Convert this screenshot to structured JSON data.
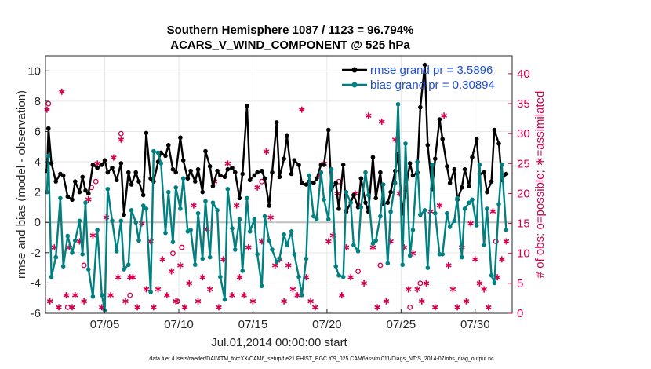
{
  "chart_data": {
    "type": "line",
    "title_line1": "Southern Hemisphere 1087 / 1123 = 96.794%",
    "title_line2": "ACARS_V_WIND_COMPONENT @ 525 hPa",
    "ylabel": "rmse and bias (model - observation)",
    "y2label": "# of obs: o=possible; ∗=assimilated",
    "xlabel": "Jul.01,2014 00:00:00 start",
    "footer": "data file: /Users/raeder/DAI/ATM_forcXX/CAM6_setup/f.e21.FHIST_BGC.f09_025.CAM6assim.011/Diags_NTrS_2014-07/obs_diag_output.nc",
    "xlim": [
      1.0,
      32.5
    ],
    "ylim": [
      -6,
      11
    ],
    "y2lim": [
      0,
      43
    ],
    "x_ticks": [
      5,
      10,
      15,
      20,
      25,
      30
    ],
    "x_tick_labels": [
      "07/05",
      "07/10",
      "07/15",
      "07/20",
      "07/25",
      "07/30"
    ],
    "y_ticks": [
      -6,
      -4,
      -2,
      0,
      2,
      4,
      6,
      8,
      10
    ],
    "y2_ticks": [
      0,
      5,
      10,
      15,
      20,
      25,
      30,
      35,
      40
    ],
    "grid": true,
    "legend_position": "top-right",
    "colors": {
      "rmse": "#000000",
      "bias": "#008080",
      "obs": "#d6004f",
      "zero_line": "#bfbfbf"
    },
    "series": [
      {
        "name": "rmse grand pr = 3.5896",
        "x": [
          1.1,
          1.2,
          1.4,
          1.7,
          2.0,
          2.2,
          2.5,
          2.8,
          3.0,
          3.3,
          3.5,
          3.7,
          3.9,
          4.2,
          4.5,
          4.8,
          5.0,
          5.2,
          5.5,
          5.8,
          6.1,
          6.3,
          6.6,
          6.8,
          7.1,
          7.3,
          7.6,
          7.8,
          8.1,
          8.3,
          8.6,
          8.8,
          9.1,
          9.3,
          9.6,
          9.8,
          10.1,
          10.3,
          10.6,
          10.8,
          11.1,
          11.3,
          11.6,
          11.8,
          12.1,
          12.3,
          12.6,
          12.8,
          13.1,
          13.3,
          13.6,
          13.8,
          14.1,
          14.3,
          14.6,
          14.8,
          15.1,
          15.3,
          15.6,
          15.8,
          16.1,
          16.3,
          16.6,
          16.8,
          17.1,
          17.3,
          17.6,
          17.8,
          18.1,
          18.3,
          18.6,
          18.8,
          19.1,
          19.3,
          19.6,
          19.8,
          20.1,
          20.3,
          20.6,
          20.8,
          21.1,
          21.3,
          21.6,
          21.8,
          22.1,
          22.3,
          22.6,
          22.8,
          23.1,
          23.3,
          23.6,
          23.8,
          24.1,
          24.3,
          24.6,
          24.8,
          25.1,
          25.3,
          25.6,
          25.8,
          26.1,
          26.3,
          26.6,
          26.8,
          27.1,
          27.3,
          27.6,
          27.8,
          28.1,
          28.3,
          28.6,
          28.8,
          29.1,
          29.3,
          29.6,
          29.8,
          30.1,
          30.3,
          30.6,
          30.8,
          31.1,
          31.3,
          31.6,
          31.8,
          32.1
        ],
        "values": [
          3.4,
          6.2,
          3.9,
          2.7,
          3.2,
          3.1,
          1.7,
          1.5,
          2.7,
          2.0,
          3.0,
          2.1,
          1.9,
          3.8,
          3.6,
          3.8,
          4.1,
          3.3,
          3.6,
          2.8,
          3.9,
          0.5,
          3.3,
          2.5,
          3.3,
          2.7,
          1.8,
          5.9,
          2.9,
          2.7,
          4.0,
          4.6,
          4.4,
          5.1,
          3.5,
          3.3,
          5.6,
          4.1,
          2.9,
          3.4,
          2.7,
          3.5,
          2.0,
          4.7,
          3.7,
          2.4,
          3.4,
          3.1,
          3.0,
          3.5,
          3.6,
          3.3,
          1.6,
          3.2,
          7.7,
          2.8,
          3.1,
          3.3,
          3.4,
          2.9,
          1.1,
          3.3,
          6.6,
          3.0,
          4.2,
          5.7,
          3.2,
          4.1,
          3.8,
          2.6,
          2.5,
          2.7,
          2.6,
          2.9,
          3.8,
          3.8,
          6.1,
          2.2,
          2.6,
          0.9,
          3.8,
          0.7,
          1.3,
          1.8,
          1.0,
          2.9,
          1.3,
          0.7,
          4.3,
          1.6,
          3.3,
          1.2,
          1.3,
          2.0,
          3.4,
          4.5,
          0.6,
          2.1,
          3.9,
          3.1,
          3.3,
          7.6,
          10.4,
          5.1,
          2.2,
          4.2,
          6.8,
          5.5,
          3.7,
          2.6,
          3.5,
          1.5,
          2.3,
          3.5,
          2.4,
          4.3,
          5.5,
          3.2,
          3.3,
          2.0,
          2.7,
          6.1,
          5.2,
          2.8,
          3.2
        ]
      },
      {
        "name": "bias grand pr = 0.30894",
        "x": [
          1.1,
          1.2,
          1.4,
          1.7,
          2.0,
          2.2,
          2.5,
          2.8,
          3.0,
          3.3,
          3.5,
          3.7,
          3.9,
          4.2,
          4.5,
          4.8,
          5.0,
          5.2,
          5.5,
          5.8,
          6.1,
          6.3,
          6.6,
          6.8,
          7.1,
          7.3,
          7.6,
          7.8,
          8.1,
          8.3,
          8.6,
          8.8,
          9.1,
          9.3,
          9.6,
          9.8,
          10.1,
          10.3,
          10.6,
          10.8,
          11.1,
          11.3,
          11.6,
          11.8,
          12.1,
          12.3,
          12.6,
          12.8,
          13.1,
          13.3,
          13.6,
          13.8,
          14.1,
          14.3,
          14.6,
          14.8,
          15.1,
          15.3,
          15.6,
          15.8,
          16.1,
          16.3,
          16.6,
          16.8,
          17.1,
          17.3,
          17.6,
          17.8,
          18.1,
          18.3,
          18.6,
          18.8,
          19.1,
          19.3,
          19.6,
          19.8,
          20.1,
          20.3,
          20.6,
          20.8,
          21.1,
          21.3,
          21.6,
          21.8,
          22.1,
          22.3,
          22.6,
          22.8,
          23.1,
          23.3,
          23.6,
          23.8,
          24.1,
          24.3,
          24.6,
          24.8,
          25.1,
          25.3,
          25.6,
          25.8,
          26.1,
          26.3,
          26.6,
          26.8,
          27.1,
          27.3,
          27.6,
          27.8,
          28.1,
          28.3,
          28.6,
          28.8,
          29.1,
          29.3,
          29.6,
          29.8,
          30.1,
          30.3,
          30.6,
          30.8,
          31.1,
          31.3,
          31.6,
          31.8,
          32.1
        ],
        "values": [
          2.0,
          4.4,
          -3.6,
          -2.3,
          1.6,
          -2.9,
          -0.9,
          -2.0,
          -1.2,
          0.1,
          -2.1,
          1.3,
          -3.1,
          -4.9,
          -0.5,
          -4.8,
          -5.8,
          2.2,
          0.1,
          -1.9,
          0.1,
          -3.1,
          -2.8,
          0.8,
          0.0,
          -1.2,
          1.1,
          0.9,
          -4.6,
          4.7,
          4.6,
          3.9,
          -0.7,
          2.0,
          -1.3,
          2.3,
          0.9,
          2.9,
          -0.6,
          -0.5,
          -2.8,
          0.6,
          -2.4,
          1.4,
          -2.3,
          1.3,
          0.8,
          -3.6,
          -5.1,
          2.2,
          -0.4,
          -1.8,
          0.2,
          -3.2,
          1.6,
          -0.6,
          0.2,
          -2.1,
          -4.2,
          0.4,
          -1.2,
          -1.8,
          -2.6,
          -2.4,
          -0.8,
          -1.5,
          -0.6,
          -2.1,
          -3.6,
          -4.8,
          -2.4,
          3.1,
          0.4,
          0.2,
          3.3,
          1.5,
          0.2,
          3.5,
          -2.9,
          -3.5,
          -3.6,
          2.0,
          1.3,
          -1.5,
          -1.9,
          1.0,
          3.3,
          1.8,
          -1.4,
          -1.2,
          0.4,
          2.5,
          -2.7,
          0.7,
          2.6,
          7.8,
          -2.8,
          5.2,
          -2.2,
          -0.5,
          4.0,
          0.5,
          0.8,
          -3.0,
          3.8,
          0.6,
          -2.1,
          -2.1,
          0.6,
          -0.3,
          0.1,
          1.6,
          -2.3,
          0.9,
          1.3,
          1.5,
          -0.2,
          3.8,
          -1.5,
          0.9,
          -3.5,
          -4.0,
          1.2,
          3.8,
          -0.5
        ]
      },
      {
        "name": "possible",
        "x": [
          1.2,
          2.5,
          3.6,
          4.1,
          4.4,
          6.1,
          6.7,
          9.6,
          9.9,
          10.2,
          15.6,
          20.8,
          22.1,
          23.6,
          25.6,
          26.3,
          31.4
        ],
        "values": [
          35,
          1,
          8,
          21,
          22,
          30,
          3,
          10,
          2,
          11,
          22,
          22,
          7,
          8,
          1,
          5,
          12
        ]
      },
      {
        "name": "assimilated",
        "x": [
          1.1,
          1.3,
          1.6,
          1.9,
          2.1,
          2.4,
          2.6,
          2.8,
          3.0,
          3.3,
          3.6,
          3.9,
          4.2,
          4.5,
          4.8,
          5.1,
          5.4,
          5.6,
          5.9,
          6.1,
          6.4,
          6.7,
          6.9,
          7.2,
          7.5,
          7.8,
          8.1,
          8.3,
          8.6,
          8.9,
          9.2,
          9.5,
          9.8,
          10.1,
          10.4,
          10.7,
          11.0,
          11.3,
          11.6,
          11.9,
          12.1,
          12.4,
          12.7,
          13.0,
          13.3,
          13.6,
          13.9,
          14.1,
          14.4,
          14.7,
          15.0,
          15.3,
          15.6,
          15.9,
          16.2,
          16.5,
          16.8,
          17.1,
          17.4,
          17.7,
          18.0,
          18.3,
          18.6,
          18.9,
          19.2,
          19.5,
          19.8,
          20.1,
          20.4,
          20.7,
          21.0,
          21.3,
          21.6,
          21.9,
          22.2,
          22.5,
          22.8,
          23.1,
          23.4,
          23.7,
          24.0,
          24.3,
          24.6,
          24.9,
          25.2,
          25.5,
          25.8,
          26.1,
          26.4,
          26.7,
          27.0,
          27.3,
          27.6,
          27.9,
          28.2,
          28.5,
          28.8,
          29.1,
          29.4,
          29.7,
          30.0,
          30.3,
          30.6,
          30.9,
          31.2,
          31.5,
          31.8,
          32.1
        ],
        "values": [
          34,
          2,
          11,
          1,
          37,
          3,
          11,
          1,
          3,
          12,
          2,
          19,
          13,
          25,
          1,
          16,
          3,
          26,
          6,
          29,
          2,
          6,
          6,
          1,
          15,
          4,
          12,
          1,
          4,
          9,
          3,
          7,
          2,
          8,
          1,
          5,
          18,
          2,
          6,
          14,
          4,
          22,
          1,
          9,
          25,
          3,
          18,
          6,
          3,
          11,
          2,
          21,
          12,
          27,
          16,
          8,
          9,
          2,
          8,
          4,
          3,
          34,
          6,
          2,
          1,
          23,
          25,
          12,
          13,
          20,
          3,
          11,
          6,
          20,
          18,
          5,
          33,
          11,
          1,
          32,
          2,
          12,
          29,
          20,
          11,
          4,
          10,
          4,
          2,
          5,
          17,
          1,
          18,
          33,
          8,
          4,
          1,
          11,
          2,
          15,
          9,
          5,
          4,
          1,
          17,
          6,
          9,
          12
        ]
      }
    ]
  }
}
